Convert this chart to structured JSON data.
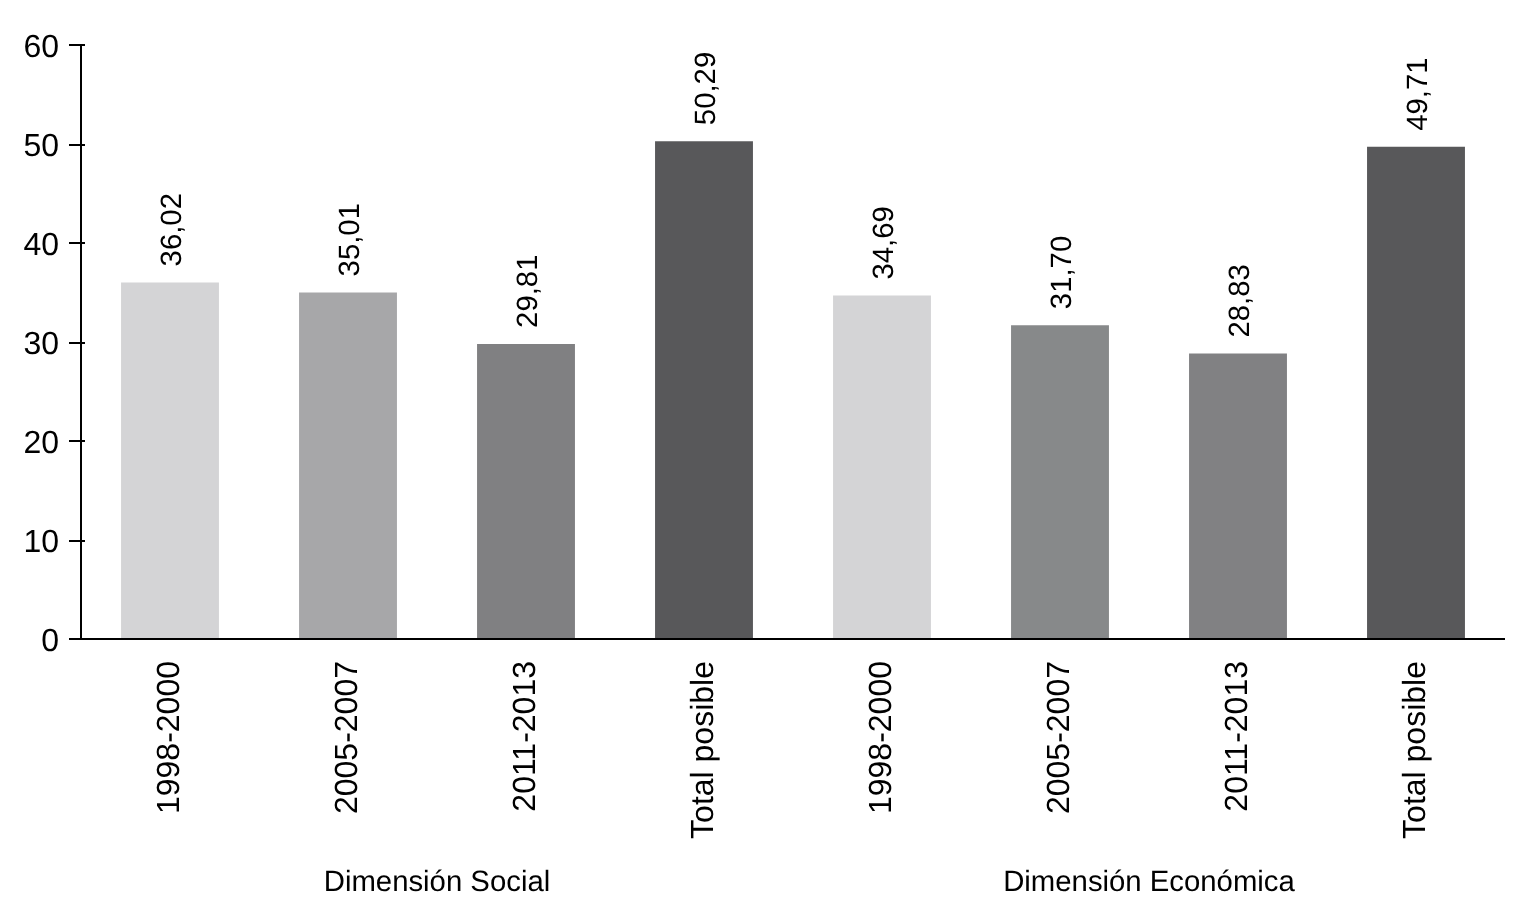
{
  "chart_data": {
    "type": "bar",
    "categories": [
      "1998-2000",
      "2005-2007",
      "2011-2013",
      "Total posible",
      "1998-2000",
      "2005-2007",
      "2011-2013",
      "Total posible"
    ],
    "values": [
      36.02,
      35.01,
      29.81,
      50.29,
      34.69,
      31.7,
      28.83,
      49.71
    ],
    "colors": [
      "#d4d4d6",
      "#a7a7a9",
      "#808082",
      "#58585a",
      "#d4d4d6",
      "#87898a",
      "#818183",
      "#58585a"
    ],
    "value_labels": [
      "36,02",
      "35,01",
      "29,81",
      "50,29",
      "34,69",
      "31,70",
      "28,83",
      "49,71"
    ],
    "annotations": [
      "Dimensión Social",
      "Dimensión Económica"
    ],
    "ylim": [
      0,
      60
    ],
    "yticks": [
      0,
      10,
      20,
      30,
      40,
      50,
      60
    ],
    "grid": false
  }
}
